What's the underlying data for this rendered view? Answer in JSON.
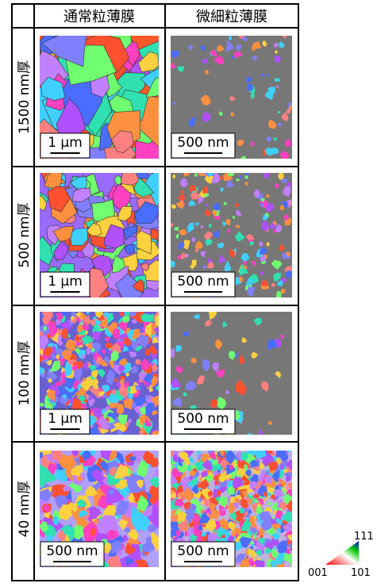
{
  "table": {
    "header": [
      "通常粒薄膜",
      "微細粒薄膜"
    ],
    "rows": [
      {
        "label": "1500 nm厚",
        "scale_bars": [
          "1 µm",
          "500 nm"
        ]
      },
      {
        "label": "500 nm厚",
        "scale_bars": [
          "1 µm",
          "500 nm"
        ]
      },
      {
        "label": "100 nm厚",
        "scale_bars": [
          "1 µm",
          "500 nm"
        ]
      },
      {
        "label": "40 nm厚",
        "scale_bars": [
          "500 nm",
          "500 nm"
        ]
      }
    ]
  },
  "legend": {
    "top": "111",
    "left": "001",
    "right": "101"
  }
}
